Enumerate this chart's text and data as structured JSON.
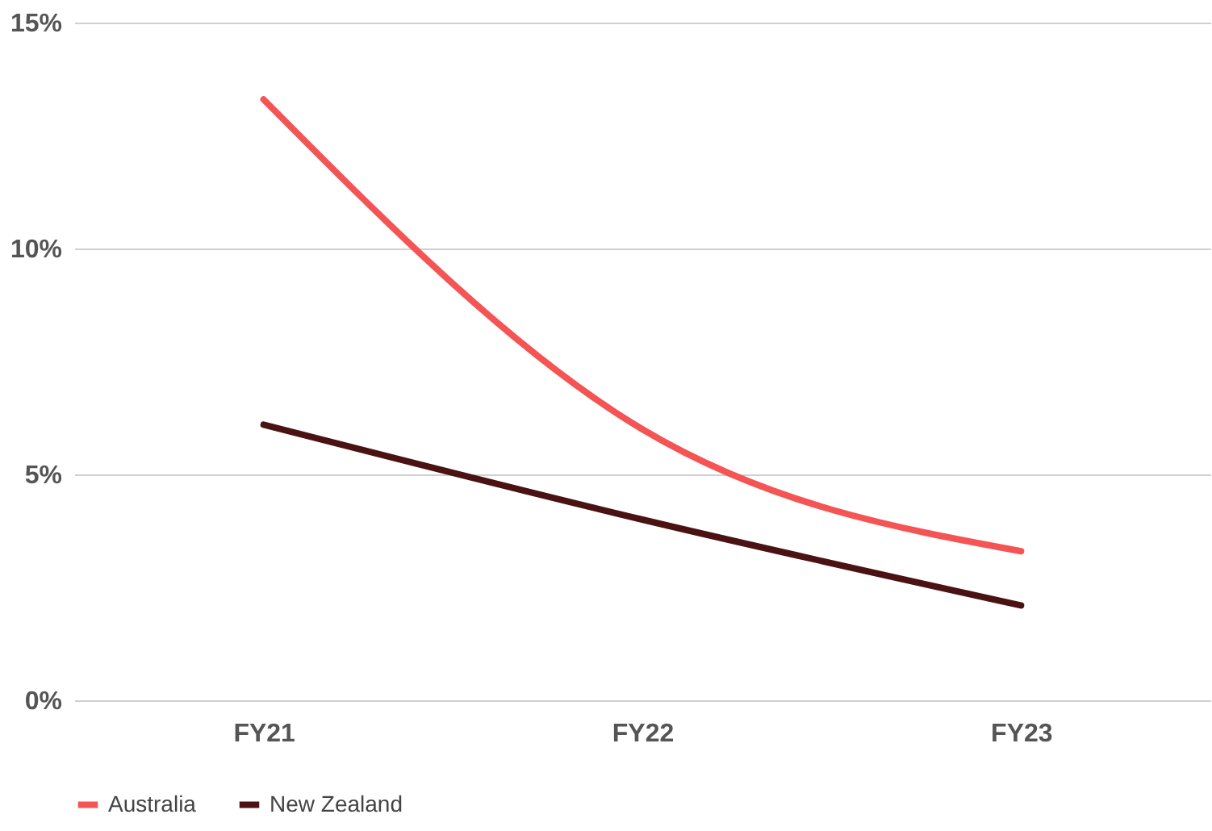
{
  "chart_data": {
    "type": "line",
    "categories": [
      "FY21",
      "FY22",
      "FY23"
    ],
    "series": [
      {
        "name": "Australia",
        "color": "#f45454",
        "values": [
          13.3,
          6.0,
          3.3
        ]
      },
      {
        "name": "New Zealand",
        "color": "#4a1212",
        "values": [
          6.1,
          4.0,
          2.1
        ]
      }
    ],
    "ylim": [
      0,
      15
    ],
    "yticks": [
      {
        "value": 0,
        "label": "0%"
      },
      {
        "value": 5,
        "label": "5%"
      },
      {
        "value": 10,
        "label": "10%"
      },
      {
        "value": 15,
        "label": "15%"
      }
    ],
    "grid": "y",
    "legend": "bottom",
    "marker": "none",
    "line_style": "solid"
  }
}
